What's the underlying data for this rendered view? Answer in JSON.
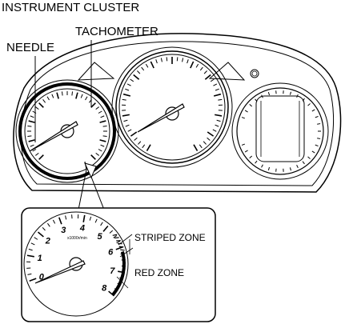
{
  "title": "INSTRUMENT CLUSTER",
  "labels": {
    "needle": "NEEDLE",
    "tachometer": "TACHOMETER",
    "striped_zone": "STRIPED ZONE",
    "red_zone": "RED ZONE"
  },
  "inset": {
    "scale_numbers": [
      "0",
      "1",
      "2",
      "3",
      "4",
      "5",
      "6",
      "7",
      "8"
    ],
    "unit": "x1000r/min"
  }
}
